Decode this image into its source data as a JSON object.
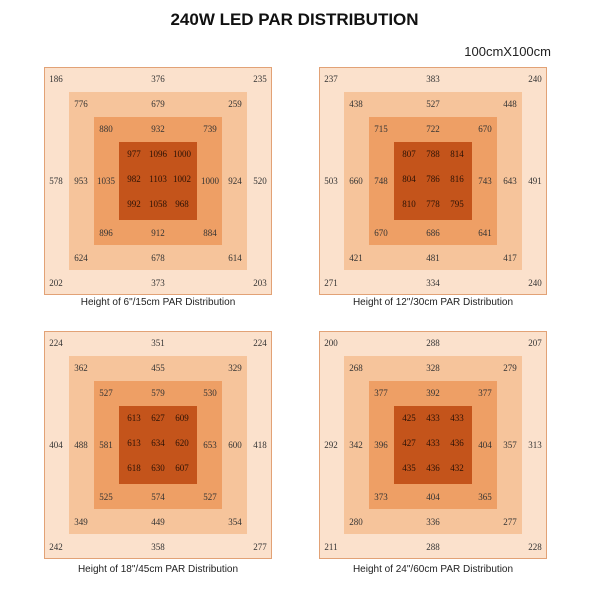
{
  "title": "240W LED PAR DISTRIBUTION",
  "size_label": "100cmX100cm",
  "colors": {
    "outer": "#fbe1cc",
    "ring1": "#f6c49b",
    "ring2": "#ee9f65",
    "center": "#c4541b",
    "border": "#e2a276"
  },
  "panels": [
    {
      "caption": "Height of 6\"/15cm PAR Distribution",
      "outer": {
        "tl": "186",
        "t": "376",
        "tr": "235",
        "l": "578",
        "r": "520",
        "bl": "202",
        "b": "373",
        "br": "203"
      },
      "ring1": {
        "tl": "776",
        "t": "679",
        "tr": "259",
        "l": "953",
        "r": "924",
        "bl": "624",
        "b": "678",
        "br": "614"
      },
      "ring2": {
        "tl": "880",
        "t": "932",
        "tr": "739",
        "l": "1035",
        "r": "1000",
        "bl": "896",
        "b": "912",
        "br": "884"
      },
      "center": [
        [
          "977",
          "1096",
          "1000"
        ],
        [
          "982",
          "1103",
          "1002"
        ],
        [
          "992",
          "1058",
          "968"
        ]
      ]
    },
    {
      "caption": "Height of 12\"/30cm PAR Distribution",
      "outer": {
        "tl": "237",
        "t": "383",
        "tr": "240",
        "l": "503",
        "r": "491",
        "bl": "271",
        "b": "334",
        "br": "240"
      },
      "ring1": {
        "tl": "438",
        "t": "527",
        "tr": "448",
        "l": "660",
        "r": "643",
        "bl": "421",
        "b": "481",
        "br": "417"
      },
      "ring2": {
        "tl": "715",
        "t": "722",
        "tr": "670",
        "l": "748",
        "r": "743",
        "bl": "670",
        "b": "686",
        "br": "641"
      },
      "center": [
        [
          "807",
          "788",
          "814"
        ],
        [
          "804",
          "786",
          "816"
        ],
        [
          "810",
          "778",
          "795"
        ]
      ]
    },
    {
      "caption": "Height of 18\"/45cm PAR Distribution",
      "outer": {
        "tl": "224",
        "t": "351",
        "tr": "224",
        "l": "404",
        "r": "418",
        "bl": "242",
        "b": "358",
        "br": "277"
      },
      "ring1": {
        "tl": "362",
        "t": "455",
        "tr": "329",
        "l": "488",
        "r": "600",
        "bl": "349",
        "b": "449",
        "br": "354"
      },
      "ring2": {
        "tl": "527",
        "t": "579",
        "tr": "530",
        "l": "581",
        "r": "653",
        "bl": "525",
        "b": "574",
        "br": "527"
      },
      "center": [
        [
          "613",
          "627",
          "609"
        ],
        [
          "613",
          "634",
          "620"
        ],
        [
          "618",
          "630",
          "607"
        ]
      ]
    },
    {
      "caption": "Height of 24\"/60cm PAR Distribution",
      "outer": {
        "tl": "200",
        "t": "288",
        "tr": "207",
        "l": "292",
        "r": "313",
        "bl": "211",
        "b": "288",
        "br": "228"
      },
      "ring1": {
        "tl": "268",
        "t": "328",
        "tr": "279",
        "l": "342",
        "r": "357",
        "bl": "280",
        "b": "336",
        "br": "277"
      },
      "ring2": {
        "tl": "377",
        "t": "392",
        "tr": "377",
        "l": "396",
        "r": "404",
        "bl": "373",
        "b": "404",
        "br": "365"
      },
      "center": [
        [
          "425",
          "433",
          "433"
        ],
        [
          "427",
          "433",
          "436"
        ],
        [
          "435",
          "436",
          "432"
        ]
      ]
    }
  ]
}
